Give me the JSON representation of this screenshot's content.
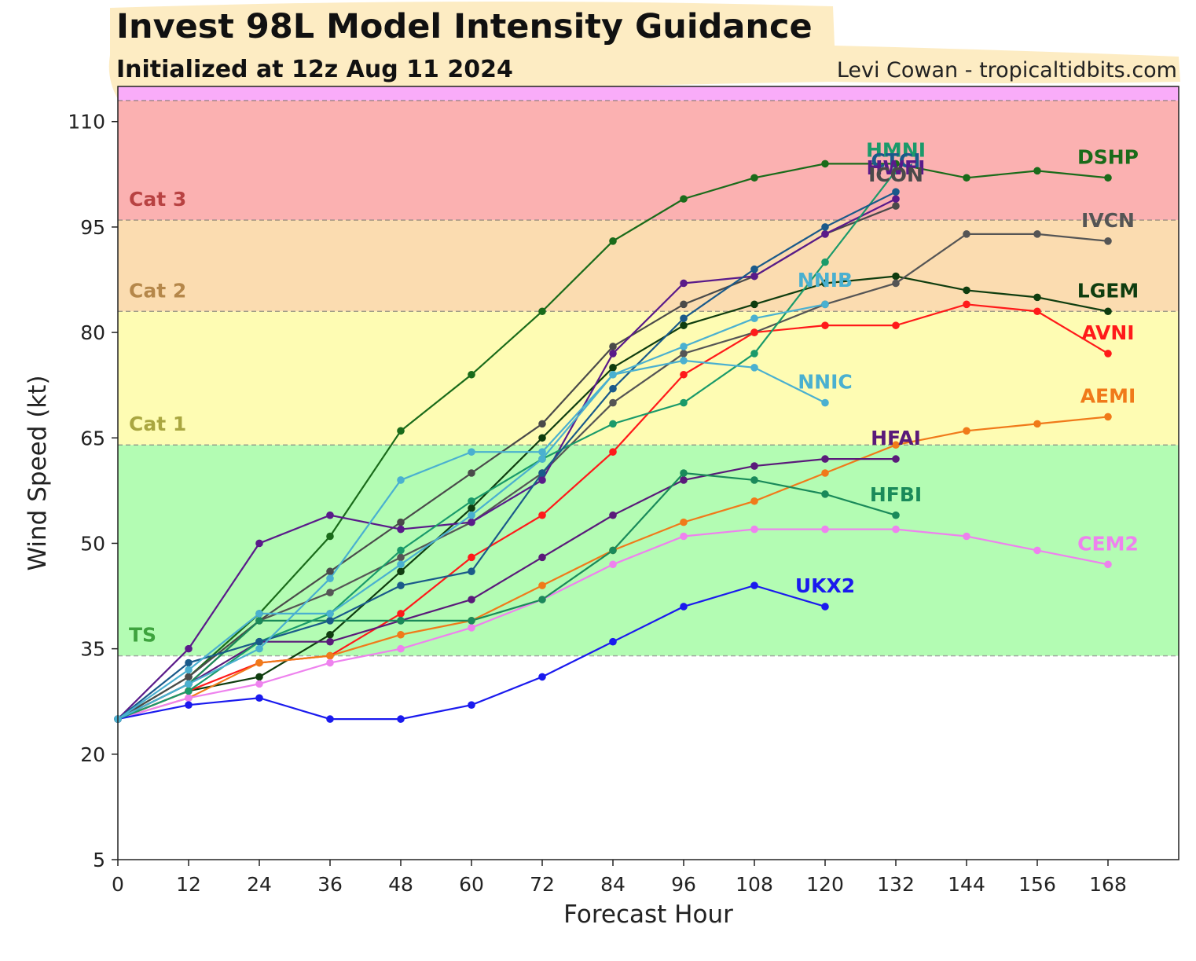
{
  "chart_data": {
    "type": "line",
    "title": "Invest 98L Model Intensity Guidance",
    "subtitle": "Initialized at 12z Aug 11 2024",
    "credit": "Levi Cowan - tropicaltidbits.com",
    "xlabel": "Forecast Hour",
    "ylabel": "Wind Speed (kt)",
    "xlim": [
      0,
      180
    ],
    "ylim": [
      5,
      115
    ],
    "xticks": [
      0,
      12,
      24,
      36,
      48,
      60,
      72,
      84,
      96,
      108,
      120,
      132,
      144,
      156,
      168
    ],
    "yticks": [
      5,
      20,
      35,
      50,
      65,
      80,
      95,
      110
    ],
    "grid": false,
    "intensity_bands": [
      {
        "label": "TS",
        "from": 34,
        "to": 64,
        "color": "#b3fcb3",
        "label_color": "#3ea33e"
      },
      {
        "label": "Cat 1",
        "from": 64,
        "to": 83,
        "color": "#fefcb3",
        "label_color": "#a9a640"
      },
      {
        "label": "Cat 2",
        "from": 83,
        "to": 96,
        "color": "#fbdcb0",
        "label_color": "#b5874a"
      },
      {
        "label": "Cat 3",
        "from": 96,
        "to": 113,
        "color": "#fbb1b1",
        "label_color": "#b84242"
      },
      {
        "label": "",
        "from": 113,
        "to": 115,
        "color": "#f9acf9",
        "label_color": "#b84242"
      }
    ],
    "series": [
      {
        "name": "DSHP",
        "color": "#1a6b1a",
        "x": [
          0,
          12,
          24,
          36,
          48,
          60,
          72,
          84,
          96,
          108,
          120,
          132,
          144,
          156,
          168
        ],
        "values": [
          25,
          31,
          40,
          51,
          66,
          74,
          83,
          93,
          99,
          102,
          104,
          104,
          102,
          103,
          102
        ]
      },
      {
        "name": "LGEM",
        "color": "#0f3d0f",
        "x": [
          0,
          12,
          24,
          36,
          48,
          60,
          72,
          84,
          96,
          108,
          120,
          132,
          144,
          156,
          168
        ],
        "values": [
          25,
          29,
          31,
          37,
          46,
          55,
          65,
          75,
          81,
          84,
          87,
          88,
          86,
          85,
          83
        ]
      },
      {
        "name": "IVCN",
        "color": "#555555",
        "x": [
          0,
          12,
          24,
          36,
          48,
          60,
          72,
          84,
          96,
          108,
          120,
          132,
          144,
          156,
          168
        ],
        "values": [
          25,
          30,
          39,
          43,
          48,
          53,
          60,
          70,
          77,
          80,
          84,
          87,
          94,
          94,
          93
        ]
      },
      {
        "name": "ICON",
        "color": "#4a4a4a",
        "x": [
          0,
          12,
          24,
          36,
          48,
          60,
          72,
          84,
          96,
          108,
          120,
          132
        ],
        "values": [
          25,
          31,
          39,
          46,
          53,
          60,
          67,
          78,
          84,
          88,
          94,
          98
        ]
      },
      {
        "name": "AVNI",
        "color": "#ff1a1a",
        "x": [
          0,
          12,
          24,
          36,
          48,
          60,
          72,
          84,
          96,
          108,
          120,
          132,
          144,
          156,
          168
        ],
        "values": [
          25,
          29,
          33,
          34,
          40,
          48,
          54,
          63,
          74,
          80,
          81,
          81,
          84,
          83,
          77
        ]
      },
      {
        "name": "AEMI",
        "color": "#f07a1a",
        "x": [
          0,
          12,
          24,
          36,
          48,
          60,
          72,
          84,
          96,
          108,
          120,
          132,
          144,
          156,
          168
        ],
        "values": [
          25,
          28,
          33,
          34,
          37,
          39,
          44,
          49,
          53,
          56,
          60,
          64,
          66,
          67,
          68
        ]
      },
      {
        "name": "CEM2",
        "color": "#ee82ee",
        "x": [
          0,
          12,
          24,
          36,
          48,
          60,
          72,
          84,
          96,
          108,
          120,
          132,
          144,
          156,
          168
        ],
        "values": [
          25,
          28,
          30,
          33,
          35,
          38,
          42,
          47,
          51,
          52,
          52,
          52,
          51,
          49,
          47
        ]
      },
      {
        "name": "UKX2",
        "color": "#1a1aee",
        "x": [
          0,
          12,
          24,
          36,
          48,
          60,
          72,
          84,
          96,
          108,
          120
        ],
        "values": [
          25,
          27,
          28,
          25,
          25,
          27,
          31,
          36,
          41,
          44,
          41
        ]
      },
      {
        "name": "HFAI",
        "color": "#5a1a7a",
        "x": [
          0,
          12,
          24,
          36,
          48,
          60,
          72,
          84,
          96,
          108,
          120,
          132
        ],
        "values": [
          25,
          30,
          36,
          36,
          39,
          42,
          48,
          54,
          59,
          61,
          62,
          62
        ]
      },
      {
        "name": "HFBI",
        "color": "#1a8a5a",
        "x": [
          0,
          12,
          24,
          36,
          48,
          60,
          72,
          84,
          96,
          108,
          120,
          132
        ],
        "values": [
          25,
          30,
          39,
          39,
          39,
          39,
          42,
          49,
          60,
          59,
          57,
          54
        ]
      },
      {
        "name": "HWFI",
        "color": "#5a1a8a",
        "x": [
          0,
          12,
          24,
          36,
          48,
          60,
          72,
          84,
          96,
          108,
          120,
          132
        ],
        "values": [
          25,
          35,
          50,
          54,
          52,
          53,
          59,
          77,
          87,
          88,
          94,
          99
        ]
      },
      {
        "name": "HMNI",
        "color": "#1a9a6a",
        "x": [
          0,
          12,
          24,
          36,
          48,
          60,
          72,
          84,
          96,
          108,
          120,
          132
        ],
        "values": [
          25,
          29,
          36,
          40,
          49,
          56,
          62,
          67,
          70,
          77,
          90,
          103
        ]
      },
      {
        "name": "CTCI",
        "color": "#1a5a8a",
        "x": [
          0,
          12,
          24,
          36,
          48,
          60,
          72,
          84,
          96,
          108,
          120,
          132
        ],
        "values": [
          25,
          33,
          36,
          39,
          44,
          46,
          60,
          72,
          82,
          89,
          95,
          100
        ]
      },
      {
        "name": "NNIB",
        "color": "#4ab0d0",
        "x": [
          0,
          12,
          24,
          36,
          48,
          60,
          72,
          84,
          96,
          108,
          120
        ],
        "values": [
          25,
          32,
          40,
          40,
          47,
          54,
          62,
          74,
          78,
          82,
          84
        ]
      },
      {
        "name": "NNIC",
        "color": "#4ab0d0",
        "x": [
          0,
          12,
          24,
          36,
          48,
          60,
          72,
          84,
          96,
          108,
          120
        ],
        "values": [
          25,
          30,
          35,
          45,
          59,
          63,
          63,
          74,
          76,
          75,
          70
        ]
      }
    ],
    "end_labels": [
      {
        "text": "DSHP",
        "x": 168,
        "y": 104,
        "color": "#1a6b1a"
      },
      {
        "text": "IVCN",
        "x": 168,
        "y": 95,
        "color": "#555555"
      },
      {
        "text": "LGEM",
        "x": 168,
        "y": 85,
        "color": "#0f3d0f"
      },
      {
        "text": "AVNI",
        "x": 168,
        "y": 79,
        "color": "#ff1a1a"
      },
      {
        "text": "AEMI",
        "x": 168,
        "y": 70,
        "color": "#f07a1a"
      },
      {
        "text": "CEM2",
        "x": 168,
        "y": 49,
        "color": "#ee82ee"
      },
      {
        "text": "HMNI",
        "x": 132,
        "y": 105,
        "color": "#1a9a6a"
      },
      {
        "text": "CTCI",
        "x": 132,
        "y": 103.5,
        "color": "#1a5a8a"
      },
      {
        "text": "HWFI",
        "x": 132,
        "y": 102.5,
        "color": "#5a1a8a"
      },
      {
        "text": "ICON",
        "x": 132,
        "y": 101.5,
        "color": "#4a4a4a"
      },
      {
        "text": "NNIB",
        "x": 120,
        "y": 86.5,
        "color": "#4ab0d0"
      },
      {
        "text": "NNIC",
        "x": 120,
        "y": 72,
        "color": "#4ab0d0"
      },
      {
        "text": "HFAI",
        "x": 132,
        "y": 64,
        "color": "#5a1a7a"
      },
      {
        "text": "HFBI",
        "x": 132,
        "y": 56,
        "color": "#1a8a5a"
      },
      {
        "text": "UKX2",
        "x": 120,
        "y": 43,
        "color": "#1a1aee"
      }
    ]
  }
}
